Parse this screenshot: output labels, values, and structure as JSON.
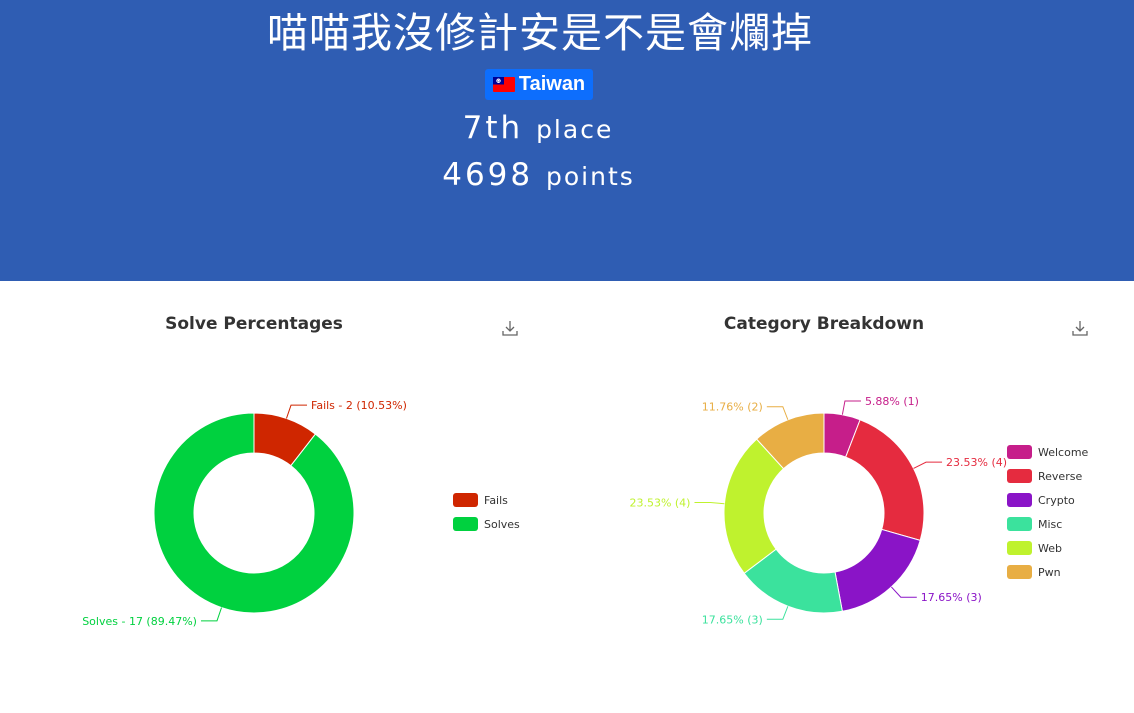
{
  "team": {
    "name": "喵喵我沒修計安是不是會爛掉",
    "country": "Taiwan",
    "place_value": "7th",
    "place_suffix": "place",
    "points_value": "4698",
    "points_suffix": "points"
  },
  "colors": {
    "banner": "#2f5db3",
    "badge": "#0d6efd"
  },
  "icons": {
    "download": "download-icon",
    "flag": "taiwan-flag-icon"
  },
  "chart_data": [
    {
      "type": "pie",
      "donut": true,
      "title": "Solve Percentages",
      "legend_position": "right",
      "series": [
        {
          "name": "Fails",
          "value": 2,
          "percent": 10.53,
          "label": "Fails - 2 (10.53%)",
          "color": "#cf2600"
        },
        {
          "name": "Solves",
          "value": 17,
          "percent": 89.47,
          "label": "Solves - 17 (89.47%)",
          "color": "#00d13f"
        }
      ]
    },
    {
      "type": "pie",
      "donut": true,
      "title": "Category Breakdown",
      "legend_position": "right",
      "series": [
        {
          "name": "Welcome",
          "value": 1,
          "percent": 5.88,
          "label": "5.88% (1)",
          "color": "#c61e8a"
        },
        {
          "name": "Reverse",
          "value": 4,
          "percent": 23.53,
          "label": "23.53% (4)",
          "color": "#e52b3f"
        },
        {
          "name": "Crypto",
          "value": 3,
          "percent": 17.65,
          "label": "17.65% (3)",
          "color": "#8a14c7"
        },
        {
          "name": "Misc",
          "value": 3,
          "percent": 17.65,
          "label": "17.65% (3)",
          "color": "#3be29d"
        },
        {
          "name": "Web",
          "value": 4,
          "percent": 23.53,
          "label": "23.53% (4)",
          "color": "#bff22e"
        },
        {
          "name": "Pwn",
          "value": 2,
          "percent": 11.76,
          "label": "11.76% (2)",
          "color": "#e8ae44"
        }
      ]
    }
  ]
}
